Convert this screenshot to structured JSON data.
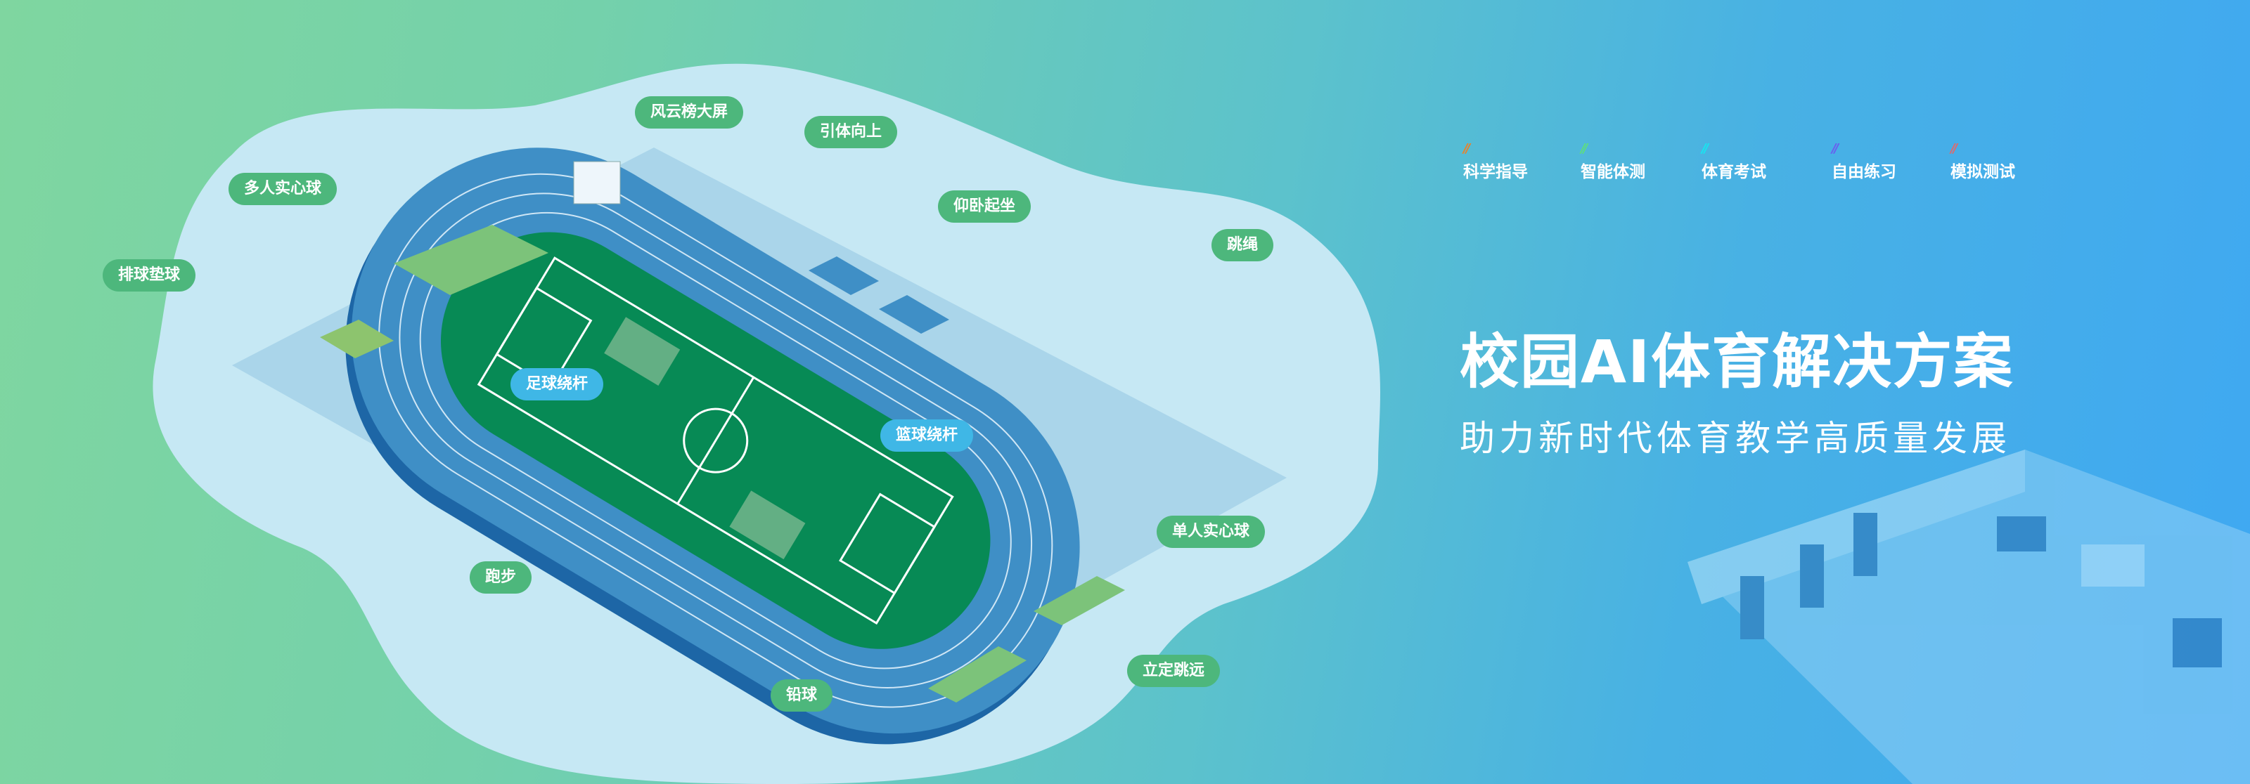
{
  "banner": {
    "title": "校园AI体育解决方案",
    "subtitle": "助力新时代体育教学高质量发展",
    "tags": [
      {
        "label": "科学指导",
        "color": "#e8822a"
      },
      {
        "label": "智能体测",
        "color": "#5ee07a"
      },
      {
        "label": "体育考试",
        "color": "#16e6f0"
      },
      {
        "label": "自由练习",
        "color": "#6a5cf0"
      },
      {
        "label": "模拟测试",
        "color": "#e0686a"
      }
    ]
  },
  "scene": {
    "labels": {
      "leaderboard": "风云榜大屏",
      "pullup": "引体向上",
      "multi_ball": "多人实心球",
      "situp": "仰卧起坐",
      "volleyball": "排球垫球",
      "rope": "跳绳",
      "football": "足球绕杆",
      "basketball": "篮球绕杆",
      "single_ball": "单人实心球",
      "running": "跑步",
      "long_jump": "立定跳远",
      "shot_put": "铅球"
    },
    "colors": {
      "label_green": "#4db77c",
      "label_blue": "#3fb7e6",
      "track": "#3f8fc6",
      "field": "#078a55"
    }
  }
}
